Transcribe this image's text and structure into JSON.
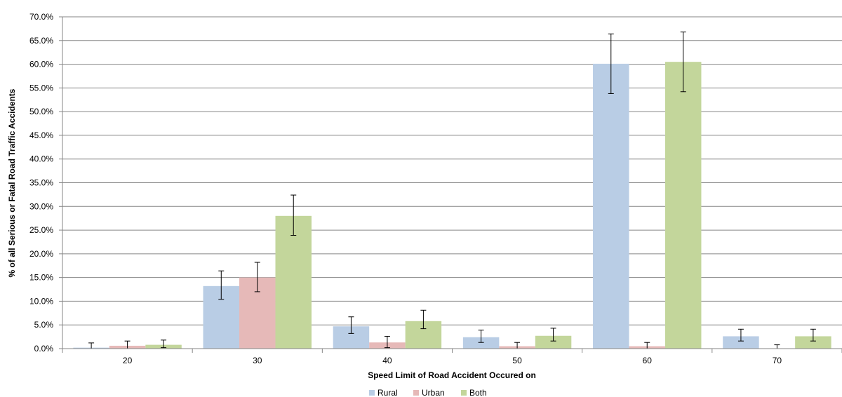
{
  "chart_data": {
    "type": "bar",
    "title": "",
    "xlabel": "Speed Limit of Road Accident Occured on",
    "ylabel": "% of all Serious or Fatal Road Traffic Accidents",
    "categories": [
      "20",
      "30",
      "40",
      "50",
      "60",
      "70"
    ],
    "ylim": [
      0,
      70
    ],
    "ytick_step": 5,
    "ytick_format": "percent_1dp",
    "grid": "horizontal",
    "legend_position": "bottom",
    "series": [
      {
        "name": "Rural",
        "color": "#b9cde5",
        "values": [
          0.2,
          13.2,
          4.7,
          2.4,
          60.1,
          2.6
        ],
        "err_low": [
          0.2,
          2.8,
          1.5,
          1.1,
          6.3,
          1.0
        ],
        "err_high": [
          1.0,
          3.2,
          2.0,
          1.5,
          6.3,
          1.5
        ]
      },
      {
        "name": "Urban",
        "color": "#e6b9b8",
        "values": [
          0.6,
          15.0,
          1.3,
          0.5,
          0.5,
          0.0
        ],
        "err_low": [
          0.6,
          3.0,
          1.1,
          0.5,
          0.5,
          0.0
        ],
        "err_high": [
          1.0,
          3.2,
          1.3,
          0.8,
          0.8,
          0.8
        ]
      },
      {
        "name": "Both",
        "color": "#c3d69b",
        "values": [
          0.8,
          28.0,
          5.8,
          2.7,
          60.5,
          2.6
        ],
        "err_low": [
          0.6,
          4.1,
          1.6,
          1.1,
          6.3,
          1.0
        ],
        "err_high": [
          1.0,
          4.4,
          2.3,
          1.6,
          6.3,
          1.5
        ]
      }
    ]
  }
}
